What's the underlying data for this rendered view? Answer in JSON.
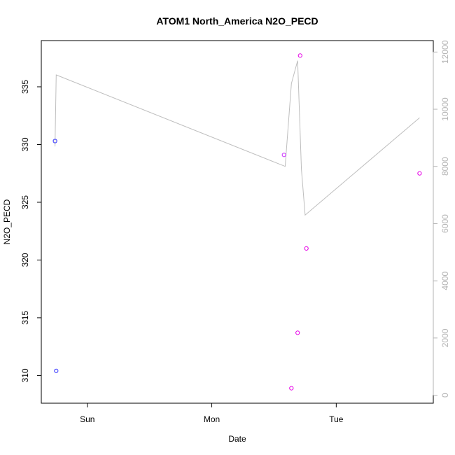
{
  "chart_data": {
    "type": "scatter",
    "title": "ATOM1 North_America N2O_PECD",
    "xlabel": "Date",
    "ylabel": "N2O_PECD",
    "x_ticks": [
      "Sun",
      "Mon",
      "Tue"
    ],
    "x_tick_positions_days": [
      1,
      2,
      3
    ],
    "xlim_days": [
      0.63,
      3.78
    ],
    "ylim": [
      307.6,
      339.0
    ],
    "y_ticks": [
      310,
      315,
      320,
      325,
      330,
      335
    ],
    "y2_ticks": [
      0,
      2000,
      4000,
      6000,
      8000,
      10000,
      12000
    ],
    "y2lim": [
      -280,
      12400
    ],
    "grid": false,
    "colors": {
      "early_points": "#3333ff",
      "late_points": "#e600e6",
      "line": "#bebebe",
      "right_axis": "#b3b3b3"
    },
    "points": [
      {
        "day": 0.74,
        "n2o_pecd": 330.3,
        "color": "#3333ff"
      },
      {
        "day": 0.75,
        "n2o_pecd": 310.4,
        "color": "#3333ff"
      },
      {
        "day": 2.58,
        "n2o_pecd": 329.1,
        "color": "#cc33ff"
      },
      {
        "day": 2.64,
        "n2o_pecd": 308.9,
        "color": "#e600e6"
      },
      {
        "day": 2.69,
        "n2o_pecd": 313.7,
        "color": "#e600e6"
      },
      {
        "day": 2.71,
        "n2o_pecd": 337.7,
        "color": "#e600e6"
      },
      {
        "day": 2.76,
        "n2o_pecd": 321.0,
        "color": "#e600e6"
      },
      {
        "day": 3.67,
        "n2o_pecd": 327.5,
        "color": "#e600e6"
      }
    ],
    "line_series": {
      "axis": "right",
      "points": [
        {
          "day": 0.74,
          "value": 8700
        },
        {
          "day": 0.75,
          "value": 11200
        },
        {
          "day": 2.59,
          "value": 8000
        },
        {
          "day": 2.64,
          "value": 10900
        },
        {
          "day": 2.69,
          "value": 11700
        },
        {
          "day": 2.72,
          "value": 7900
        },
        {
          "day": 2.75,
          "value": 6300
        },
        {
          "day": 3.67,
          "value": 9700
        }
      ]
    }
  }
}
